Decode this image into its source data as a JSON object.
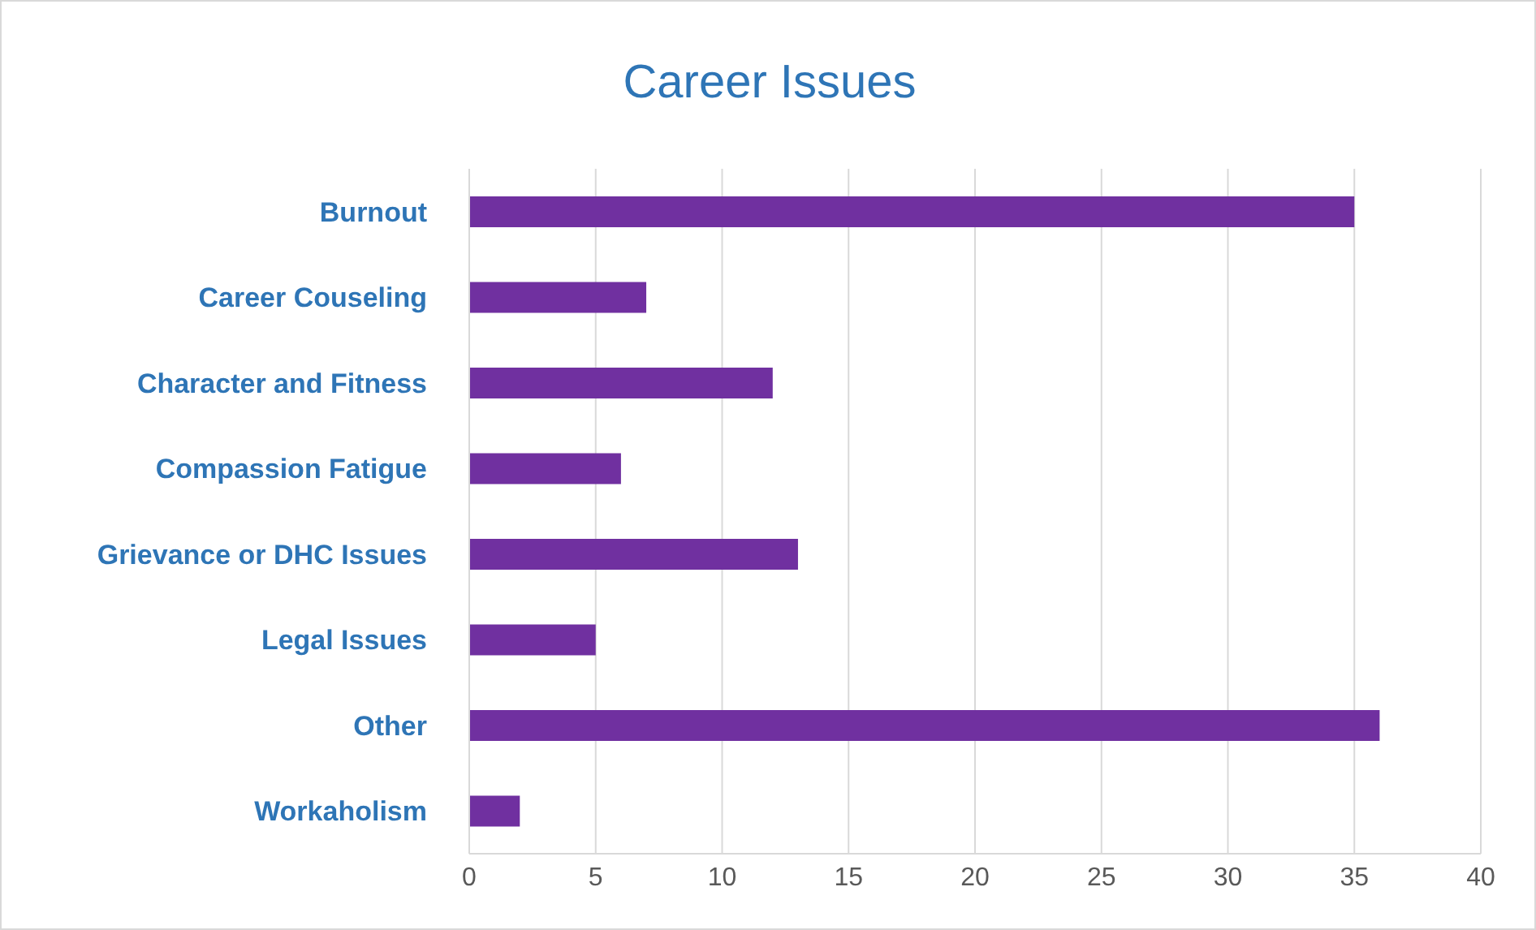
{
  "chart_data": {
    "type": "bar",
    "orientation": "horizontal",
    "title": "Career Issues",
    "categories": [
      "Burnout",
      "Career Couseling",
      "Character and Fitness",
      "Compassion Fatigue",
      "Grievance or DHC Issues",
      "Legal Issues",
      "Other",
      "Workaholism"
    ],
    "values": [
      35,
      7,
      12,
      6,
      13,
      5,
      36,
      2
    ],
    "color": "#7030a0",
    "xlim": [
      0,
      40
    ],
    "xticks": [
      0,
      5,
      10,
      15,
      20,
      25,
      30,
      35,
      40
    ],
    "grid": "x"
  }
}
